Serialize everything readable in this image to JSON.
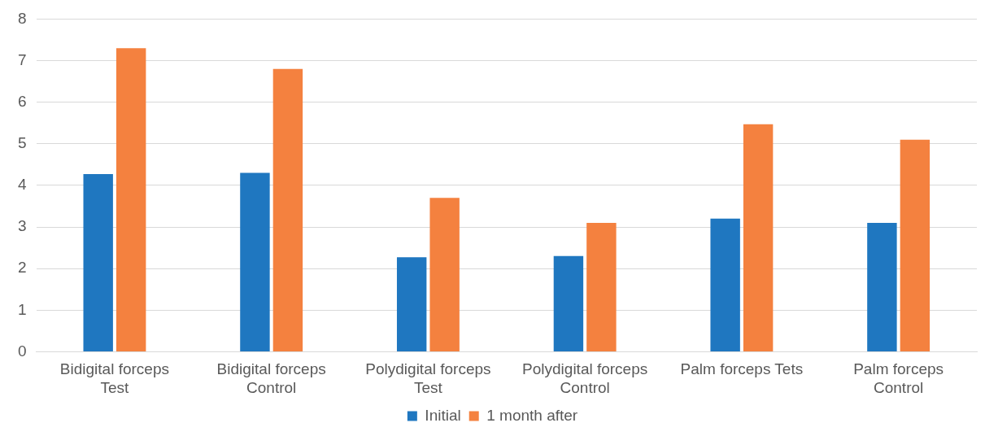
{
  "chart_data": {
    "type": "bar",
    "categories": [
      "Bidigital forceps Test",
      "Bidigital forceps Control",
      "Polydigital forceps Test",
      "Polydigital forceps Control",
      "Palm forceps Tets",
      "Palm forceps Control"
    ],
    "series": [
      {
        "name": "Initial",
        "color": "#1f77c0",
        "values": [
          4.27,
          4.3,
          2.27,
          2.3,
          3.2,
          3.1
        ]
      },
      {
        "name": "1 month after",
        "color": "#f4813f",
        "values": [
          7.3,
          6.8,
          3.7,
          3.1,
          5.47,
          5.1
        ]
      }
    ],
    "ylim": [
      0,
      8
    ],
    "yticks": [
      0,
      1,
      2,
      3,
      4,
      5,
      6,
      7,
      8
    ],
    "grid": "y",
    "legend": "bottom"
  }
}
